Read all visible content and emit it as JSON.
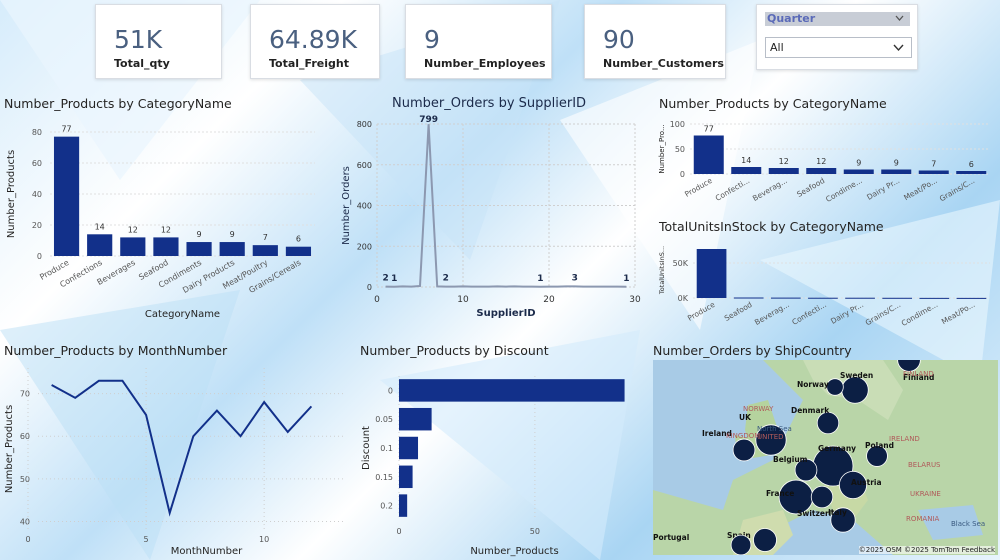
{
  "kpis": [
    {
      "value": "51K",
      "label": "Total_qty"
    },
    {
      "value": "64.89K",
      "label": "Total_Freight"
    },
    {
      "value": "9",
      "label": "Number_Employees"
    },
    {
      "value": "90",
      "label": "Number_Customers"
    }
  ],
  "slicer": {
    "title": "Quarter",
    "selected": "All"
  },
  "colors": {
    "bar": "#12308a",
    "line_supplier": "#8c98b0",
    "line_month": "#12308a",
    "map_bubble": "#0c1f44"
  },
  "chart_data": [
    {
      "type": "bar",
      "title": "Number_Products by CategoryName",
      "xlabel": "CategoryName",
      "ylabel": "Number_Products",
      "categories": [
        "Produce",
        "Confections",
        "Beverages",
        "Seafood",
        "Condiments",
        "Dairy Products",
        "Meat/Poultry",
        "Grains/Cereals"
      ],
      "values": [
        77,
        14,
        12,
        12,
        9,
        9,
        7,
        6
      ],
      "ylim": [
        0,
        80
      ],
      "yticks": [
        "0",
        "20",
        "40",
        "60",
        "80"
      ]
    },
    {
      "type": "line",
      "title": "Number_Orders by SupplierID",
      "xlabel": "SupplierID",
      "ylabel": "Number_Orders",
      "x": [
        1,
        2,
        3,
        4,
        5,
        6,
        7,
        8,
        9,
        10,
        11,
        12,
        13,
        14,
        15,
        16,
        17,
        18,
        19,
        20,
        21,
        22,
        23,
        24,
        25,
        26,
        27,
        28,
        29
      ],
      "values": [
        2,
        1,
        3,
        2,
        5,
        799,
        3,
        2,
        2,
        3,
        2,
        2,
        2,
        3,
        2,
        3,
        2,
        2,
        1,
        2,
        2,
        3,
        3,
        2,
        2,
        2,
        2,
        2,
        1
      ],
      "data_labels": [
        {
          "x": 1,
          "y": 2,
          "label": "2"
        },
        {
          "x": 2,
          "y": 1,
          "label": "1"
        },
        {
          "x": 6,
          "y": 799,
          "label": "799"
        },
        {
          "x": 8,
          "y": 2,
          "label": "2"
        },
        {
          "x": 19,
          "y": 1,
          "label": "1"
        },
        {
          "x": 23,
          "y": 3,
          "label": "3"
        },
        {
          "x": 29,
          "y": 1,
          "label": "1"
        }
      ],
      "xlim": [
        0,
        30
      ],
      "ylim": [
        0,
        800
      ],
      "xticks": [
        "0",
        "10",
        "20",
        "30"
      ],
      "yticks": [
        "0",
        "200",
        "400",
        "600",
        "800"
      ],
      "grid": true
    },
    {
      "type": "bar",
      "title": "Number_Products by CategoryName",
      "ylabel": "Number_Pro...",
      "categories": [
        "Produce",
        "Confecti...",
        "Beverag...",
        "Seafood",
        "Condime...",
        "Dairy Pr...",
        "Meat/Po...",
        "Grains/C..."
      ],
      "values": [
        77,
        14,
        12,
        12,
        9,
        9,
        7,
        6
      ],
      "ylim": [
        0,
        100
      ],
      "yticks": [
        "0",
        "50",
        "100"
      ]
    },
    {
      "type": "bar",
      "title": "TotalUnitsInStock by CategoryName",
      "ylabel": "TotalUnitsInS...",
      "categories": [
        "Produce",
        "Seafood",
        "Beverag...",
        "Confecti...",
        "Dairy Pr...",
        "Grains/C...",
        "Condime...",
        "Meat/Po..."
      ],
      "values": [
        70000,
        700,
        560,
        390,
        390,
        300,
        180,
        160
      ],
      "ylim": [
        0,
        80000
      ],
      "yticks": [
        "0K",
        "50K"
      ]
    },
    {
      "type": "line",
      "title": "Number_Products by MonthNumber",
      "xlabel": "MonthNumber",
      "ylabel": "Number_Products",
      "x": [
        1,
        2,
        3,
        4,
        5,
        6,
        7,
        8,
        9,
        10,
        11,
        12
      ],
      "values": [
        72,
        69,
        73,
        73,
        65,
        42,
        60,
        66,
        60,
        68,
        61,
        67
      ],
      "xlim": [
        0,
        13
      ],
      "ylim": [
        38,
        76
      ],
      "xticks": [
        "0",
        "5",
        "10"
      ],
      "yticks": [
        "40",
        "50",
        "60",
        "70"
      ]
    },
    {
      "type": "bar",
      "orientation": "horizontal",
      "title": "Number_Products by Discount",
      "xlabel": "Number_Products",
      "ylabel": "Discount",
      "categories": [
        "0",
        "0.05",
        "0.1",
        "0.15",
        "0.2"
      ],
      "values": [
        83,
        12,
        7,
        5,
        3
      ],
      "xlim": [
        0,
        85
      ],
      "xticks": [
        "0",
        "50"
      ]
    },
    {
      "type": "map",
      "title": "Number_Orders by ShipCountry",
      "labels": [
        "Sweden",
        "Norway",
        "Finland",
        "Denmark",
        "UK",
        "Ireland",
        "Germany",
        "Poland",
        "Belgium",
        "France",
        "Austria",
        "Switzerland",
        "Italy",
        "Spain",
        "Portugal"
      ],
      "values": [
        37,
        6,
        22,
        18,
        56,
        19,
        122,
        16,
        19,
        77,
        40,
        18,
        28,
        23,
        13
      ],
      "attribution": "©2025 OSM ©2025 TomTom Feedback"
    }
  ],
  "map_labels": [
    "FINLAND",
    "NORWAY",
    "North Sea",
    "UNITED",
    "KINGDOM",
    "IRELAND",
    "BELARUS",
    "UKRAINE",
    "ROMANIA",
    "Black Sea",
    "PORTUGAL"
  ]
}
